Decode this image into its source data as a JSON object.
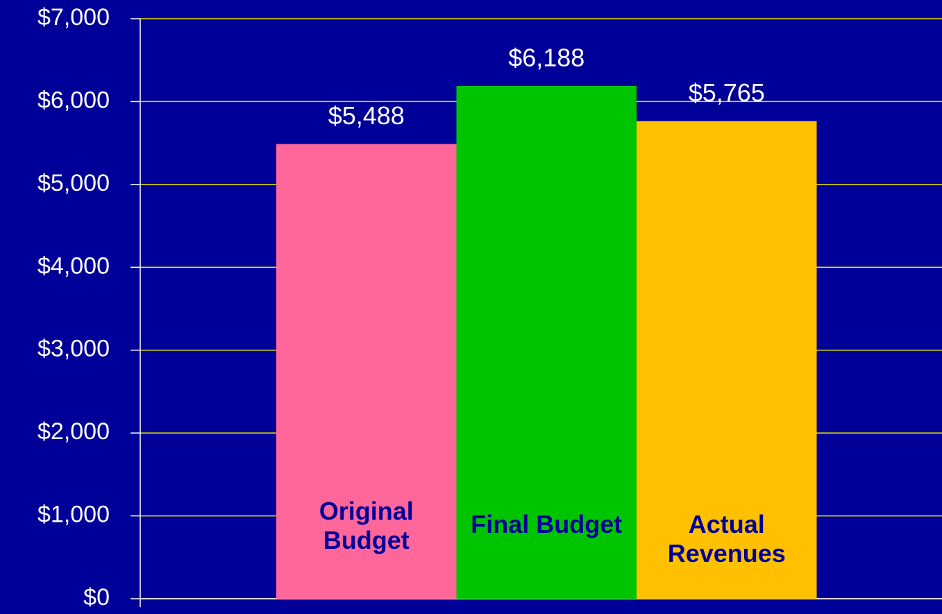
{
  "chart_data": {
    "type": "bar",
    "categories": [
      "Original Budget",
      "Final Budget",
      "Actual Revenues"
    ],
    "values": [
      5488,
      6188,
      5765
    ],
    "value_labels": [
      "$5,488",
      "$6,188",
      "$5,765"
    ],
    "colors": [
      "#ff6699",
      "#00c400",
      "#ffc000"
    ],
    "ylim": [
      0,
      7000
    ],
    "yticks": [
      {
        "value": 0,
        "label": "$0"
      },
      {
        "value": 1000,
        "label": "$1,000"
      },
      {
        "value": 2000,
        "label": "$2,000"
      },
      {
        "value": 3000,
        "label": "$3,000"
      },
      {
        "value": 4000,
        "label": "$4,000"
      },
      {
        "value": 5000,
        "label": "$5,000"
      },
      {
        "value": 6000,
        "label": "$6,000"
      },
      {
        "value": 7000,
        "label": "$7,000"
      }
    ],
    "grid": true
  }
}
